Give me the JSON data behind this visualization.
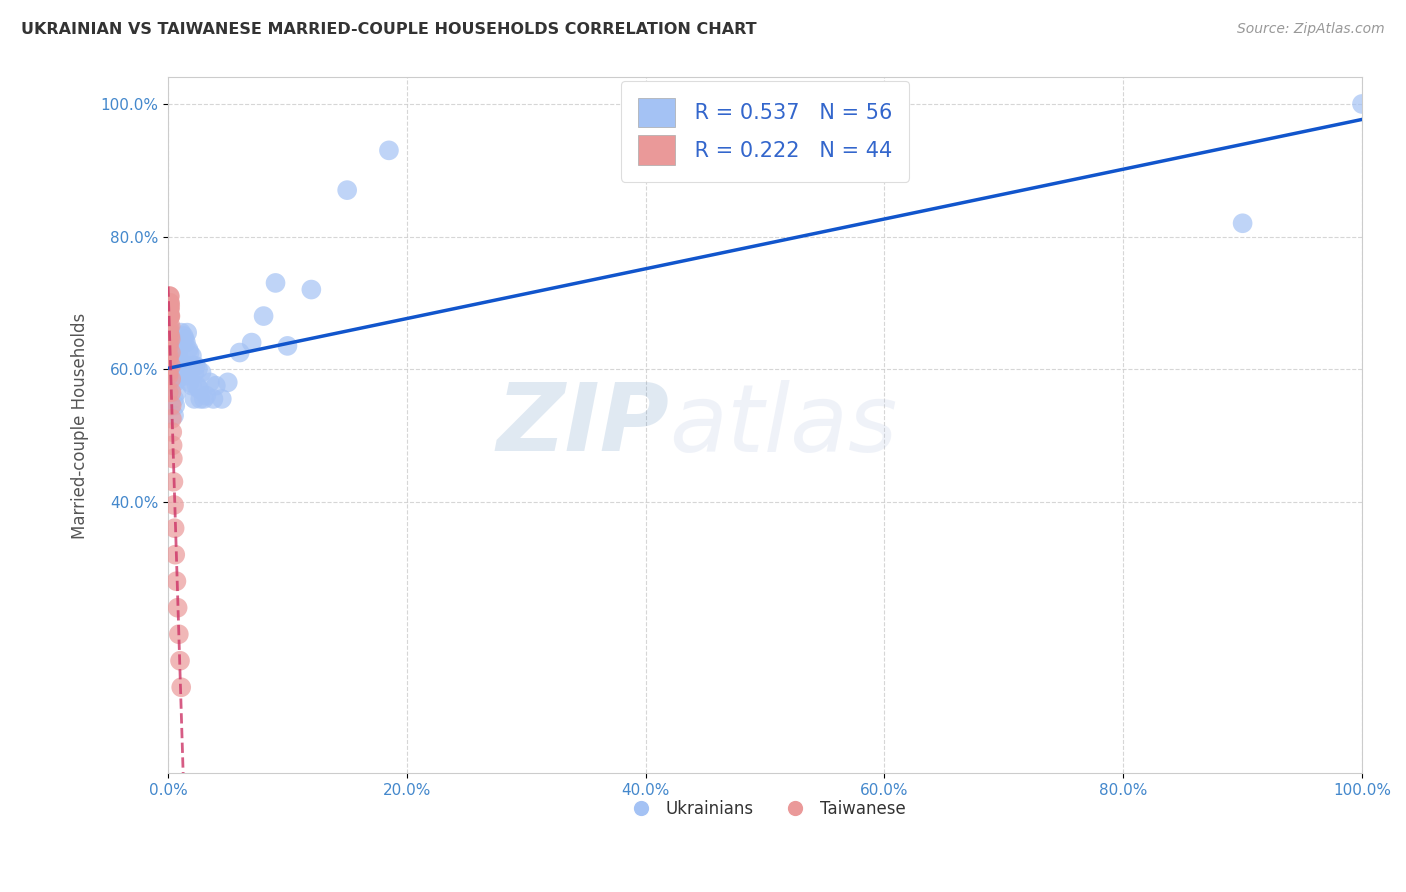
{
  "title": "UKRAINIAN VS TAIWANESE MARRIED-COUPLE HOUSEHOLDS CORRELATION CHART",
  "source": "Source: ZipAtlas.com",
  "ylabel": "Married-couple Households",
  "xlim": [
    0.0,
    1.0
  ],
  "ylim": [
    0.0,
    1.0
  ],
  "xticks": [
    0.0,
    0.2,
    0.4,
    0.6,
    0.8,
    1.0
  ],
  "yticks": [
    0.4,
    0.6,
    0.8,
    1.0
  ],
  "xticklabels": [
    "0.0%",
    "20.0%",
    "40.0%",
    "60.0%",
    "80.0%",
    "100.0%"
  ],
  "yticklabels": [
    "40.0%",
    "60.0%",
    "80.0%",
    "100.0%"
  ],
  "legend_r_blue": "R = 0.537",
  "legend_n_blue": "N = 56",
  "legend_r_pink": "R = 0.222",
  "legend_n_pink": "N = 44",
  "blue_color": "#a4c2f4",
  "pink_color": "#ea9999",
  "blue_line_color": "#1155cc",
  "pink_line_color": "#cc3366",
  "watermark_zip": "ZIP",
  "watermark_atlas": "atlas",
  "blue_regression_start_y": 0.5,
  "blue_regression_end_y": 0.93,
  "pink_regression_intercept": 0.575,
  "pink_regression_slope": 3.5,
  "ukrainians_x": [
    0.005,
    0.005,
    0.006,
    0.006,
    0.007,
    0.007,
    0.008,
    0.008,
    0.009,
    0.009,
    0.01,
    0.01,
    0.011,
    0.011,
    0.012,
    0.012,
    0.013,
    0.013,
    0.014,
    0.014,
    0.015,
    0.015,
    0.016,
    0.016,
    0.017,
    0.018,
    0.018,
    0.019,
    0.02,
    0.02,
    0.021,
    0.022,
    0.022,
    0.023,
    0.024,
    0.025,
    0.026,
    0.027,
    0.028,
    0.03,
    0.032,
    0.035,
    0.038,
    0.04,
    0.045,
    0.05,
    0.06,
    0.07,
    0.08,
    0.09,
    0.1,
    0.12,
    0.15,
    0.185,
    0.9,
    1.0
  ],
  "ukrainians_y": [
    0.555,
    0.53,
    0.58,
    0.545,
    0.6,
    0.565,
    0.62,
    0.585,
    0.63,
    0.595,
    0.635,
    0.6,
    0.655,
    0.61,
    0.64,
    0.595,
    0.65,
    0.605,
    0.645,
    0.595,
    0.64,
    0.59,
    0.655,
    0.605,
    0.63,
    0.625,
    0.58,
    0.6,
    0.62,
    0.575,
    0.605,
    0.595,
    0.555,
    0.605,
    0.575,
    0.6,
    0.57,
    0.555,
    0.595,
    0.555,
    0.56,
    0.58,
    0.555,
    0.575,
    0.555,
    0.58,
    0.625,
    0.64,
    0.68,
    0.73,
    0.635,
    0.72,
    0.87,
    0.93,
    0.82,
    1.0
  ],
  "taiwanese_x": [
    0.0005,
    0.0005,
    0.0006,
    0.0006,
    0.0007,
    0.0007,
    0.0008,
    0.0008,
    0.0009,
    0.0009,
    0.001,
    0.001,
    0.0011,
    0.0012,
    0.0012,
    0.0013,
    0.0014,
    0.0015,
    0.0015,
    0.0016,
    0.0017,
    0.0018,
    0.0019,
    0.002,
    0.0021,
    0.0022,
    0.0023,
    0.0025,
    0.0026,
    0.0028,
    0.003,
    0.0032,
    0.0035,
    0.0038,
    0.004,
    0.0045,
    0.005,
    0.0055,
    0.006,
    0.007,
    0.008,
    0.009,
    0.01,
    0.011
  ],
  "taiwanese_y": [
    0.59,
    0.565,
    0.62,
    0.595,
    0.64,
    0.615,
    0.66,
    0.635,
    0.68,
    0.655,
    0.695,
    0.665,
    0.69,
    0.68,
    0.71,
    0.7,
    0.68,
    0.71,
    0.69,
    0.7,
    0.68,
    0.695,
    0.65,
    0.68,
    0.665,
    0.645,
    0.625,
    0.605,
    0.585,
    0.565,
    0.545,
    0.525,
    0.505,
    0.485,
    0.465,
    0.43,
    0.395,
    0.36,
    0.32,
    0.28,
    0.24,
    0.2,
    0.16,
    0.12
  ]
}
